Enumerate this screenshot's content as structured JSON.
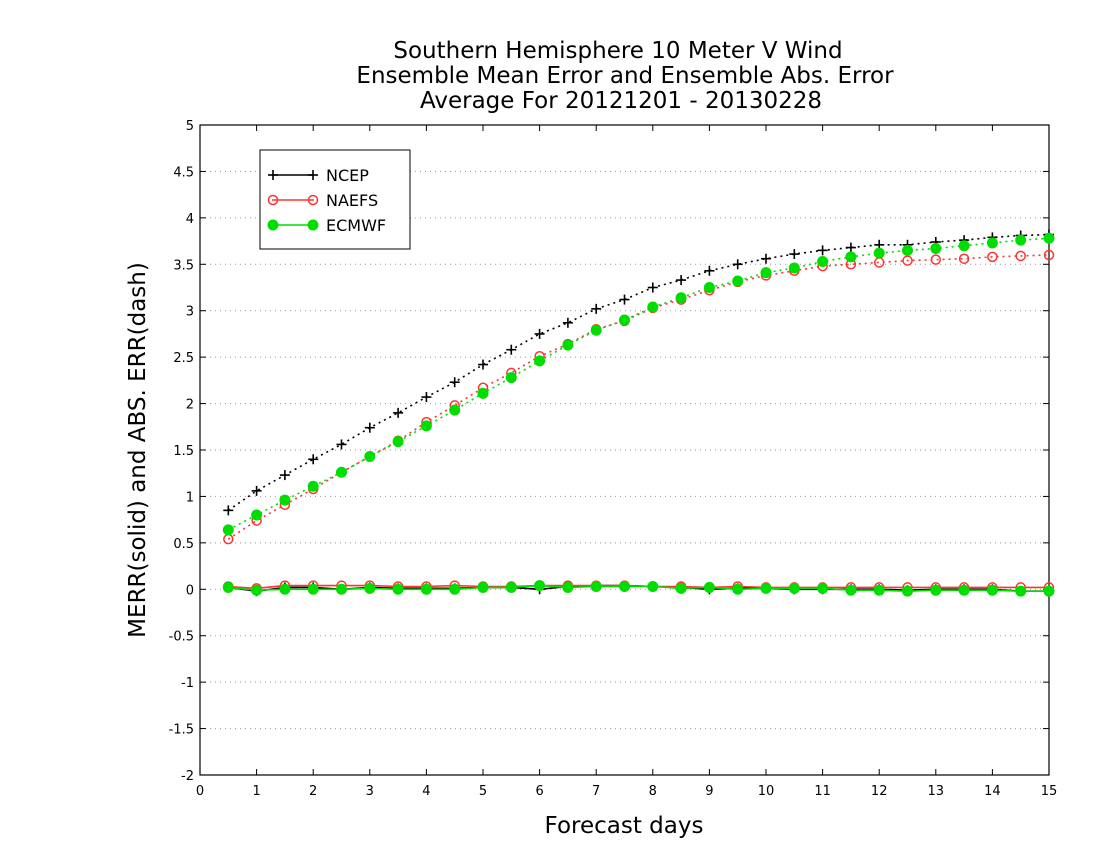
{
  "chart_data": {
    "type": "line",
    "title_lines": [
      "Southern Hemisphere 10 Meter V Wind",
      "Ensemble Mean Error and Ensemble Abs. Error",
      "Average For 20121201 - 20130228"
    ],
    "xlabel": "Forecast days",
    "ylabel": "MERR(solid) and ABS. ERR(dash)",
    "xlim": [
      0,
      15
    ],
    "ylim": [
      -2,
      5
    ],
    "xticks": [
      0,
      1,
      2,
      3,
      4,
      5,
      6,
      7,
      8,
      9,
      10,
      11,
      12,
      13,
      14,
      15
    ],
    "yticks": [
      -2,
      -1.5,
      -1,
      -0.5,
      0,
      0.5,
      1,
      1.5,
      2,
      2.5,
      3,
      3.5,
      4,
      4.5,
      5
    ],
    "ytick_labels": [
      "-2",
      "-1.5",
      "-1",
      "-0.5",
      "0",
      "0.5",
      "1",
      "1.5",
      "2",
      "2.5",
      "3",
      "3.5",
      "4",
      "4.5",
      "5"
    ],
    "grid": "horizontal dotted",
    "legend_position": "top-left",
    "x": [
      0.5,
      1,
      1.5,
      2,
      2.5,
      3,
      3.5,
      4,
      4.5,
      5,
      5.5,
      6,
      6.5,
      7,
      7.5,
      8,
      8.5,
      9,
      9.5,
      10,
      10.5,
      11,
      11.5,
      12,
      12.5,
      13,
      13.5,
      14,
      14.5,
      15
    ],
    "series": [
      {
        "name": "NCEP",
        "color": "#000000",
        "marker": "plus",
        "abs_err": [
          0.85,
          1.06,
          1.23,
          1.4,
          1.56,
          1.74,
          1.9,
          2.07,
          2.23,
          2.42,
          2.58,
          2.75,
          2.87,
          3.02,
          3.12,
          3.25,
          3.33,
          3.43,
          3.5,
          3.56,
          3.61,
          3.65,
          3.68,
          3.71,
          3.71,
          3.74,
          3.76,
          3.79,
          3.81,
          3.82
        ],
        "mean_err": [
          0.02,
          -0.02,
          0.02,
          0.02,
          0.0,
          0.02,
          0.01,
          0.01,
          0.01,
          0.02,
          0.02,
          0.0,
          0.03,
          0.04,
          0.04,
          0.03,
          0.02,
          0.0,
          0.01,
          0.01,
          0.0,
          0.0,
          0.0,
          0.0,
          -0.01,
          0.0,
          0.0,
          0.0,
          -0.02,
          -0.02
        ]
      },
      {
        "name": "NAEFS",
        "color": "#ff3333",
        "marker": "open-circle",
        "abs_err": [
          0.54,
          0.74,
          0.91,
          1.08,
          1.26,
          1.43,
          1.6,
          1.8,
          1.98,
          2.17,
          2.33,
          2.51,
          2.64,
          2.8,
          2.89,
          3.03,
          3.12,
          3.22,
          3.31,
          3.38,
          3.43,
          3.48,
          3.5,
          3.52,
          3.54,
          3.55,
          3.56,
          3.58,
          3.59,
          3.6
        ],
        "mean_err": [
          0.03,
          0.01,
          0.04,
          0.04,
          0.04,
          0.04,
          0.03,
          0.03,
          0.04,
          0.03,
          0.03,
          0.04,
          0.04,
          0.04,
          0.04,
          0.03,
          0.03,
          0.02,
          0.03,
          0.02,
          0.02,
          0.02,
          0.02,
          0.02,
          0.02,
          0.02,
          0.02,
          0.02,
          0.02,
          0.02
        ]
      },
      {
        "name": "ECMWF",
        "color": "#00dd00",
        "marker": "filled-circle",
        "abs_err": [
          0.64,
          0.8,
          0.96,
          1.11,
          1.26,
          1.43,
          1.59,
          1.76,
          1.93,
          2.11,
          2.28,
          2.46,
          2.63,
          2.79,
          2.9,
          3.04,
          3.14,
          3.25,
          3.32,
          3.41,
          3.46,
          3.53,
          3.58,
          3.62,
          3.65,
          3.67,
          3.7,
          3.73,
          3.76,
          3.78
        ],
        "mean_err": [
          0.02,
          -0.01,
          0.0,
          0.0,
          0.0,
          0.01,
          0.0,
          0.0,
          0.0,
          0.02,
          0.02,
          0.04,
          0.02,
          0.03,
          0.03,
          0.03,
          0.01,
          0.02,
          0.0,
          0.01,
          0.01,
          0.01,
          -0.01,
          -0.01,
          -0.02,
          -0.01,
          -0.01,
          -0.01,
          -0.02,
          -0.02
        ]
      }
    ]
  }
}
